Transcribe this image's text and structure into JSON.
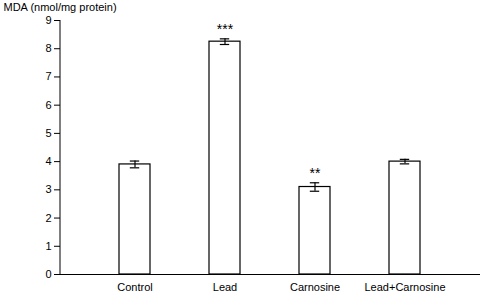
{
  "chart_data": {
    "type": "bar",
    "categories": [
      "Control",
      "Lead",
      "Carnosine",
      "Lead+Carnosine"
    ],
    "values": [
      3.9,
      8.25,
      3.1,
      4.0
    ],
    "errors": [
      0.12,
      0.1,
      0.15,
      0.08
    ],
    "color": "#ffffff",
    "ylabel": "MDA (nmol/mg protein)",
    "ylim": [
      0,
      9
    ],
    "yticks": [
      0,
      1,
      2,
      3,
      4,
      5,
      6,
      7,
      8,
      9
    ],
    "annotations": [
      {
        "category": "Lead",
        "text": "***"
      },
      {
        "category": "Carnosine",
        "text": "**"
      }
    ],
    "grid": false
  }
}
